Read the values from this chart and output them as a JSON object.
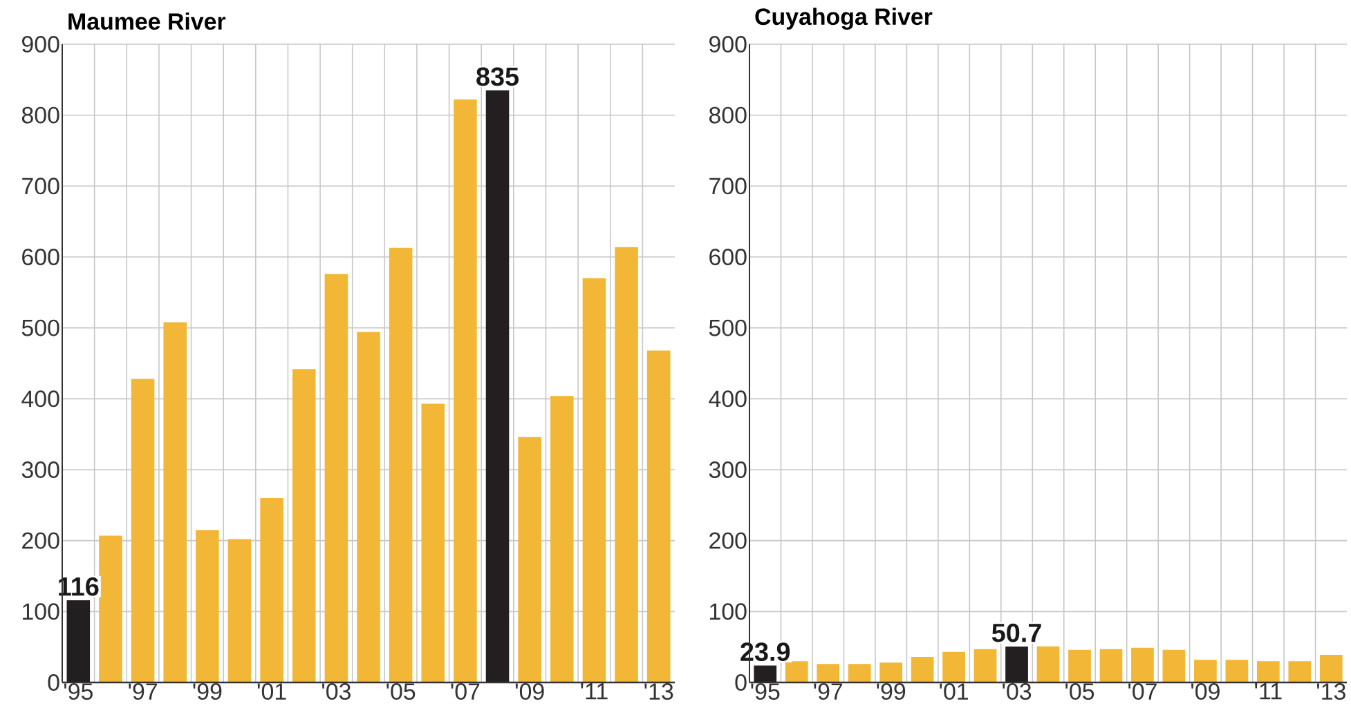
{
  "chart_data": [
    {
      "type": "bar",
      "title": "Maumee River",
      "categories": [
        "'95",
        null,
        "'97",
        null,
        "'99",
        null,
        "'01",
        null,
        "'03",
        null,
        "'05",
        null,
        "'07",
        null,
        "'09",
        null,
        "'11",
        null,
        "'13"
      ],
      "values": [
        116,
        207,
        428,
        508,
        215,
        202,
        260,
        442,
        576,
        494,
        613,
        393,
        822,
        835,
        346,
        404,
        570,
        614,
        468
      ],
      "colors": [
        "#231f20",
        "#f2b736",
        "#f2b736",
        "#f2b736",
        "#f2b736",
        "#f2b736",
        "#f2b736",
        "#f2b736",
        "#f2b736",
        "#f2b736",
        "#f2b736",
        "#f2b736",
        "#f2b736",
        "#231f20",
        "#f2b736",
        "#f2b736",
        "#f2b736",
        "#f2b736",
        "#f2b736"
      ],
      "value_labels": [
        "116",
        null,
        null,
        null,
        null,
        null,
        null,
        null,
        null,
        null,
        null,
        null,
        null,
        "835",
        null,
        null,
        null,
        null,
        null
      ],
      "ylim": [
        0,
        900
      ],
      "yticks": [
        0,
        100,
        200,
        300,
        400,
        500,
        600,
        700,
        800,
        900
      ],
      "grid": true
    },
    {
      "type": "bar",
      "title": "Cuyahoga River",
      "categories": [
        "'95",
        null,
        "'97",
        null,
        "'99",
        null,
        "'01",
        null,
        "'03",
        null,
        "'05",
        null,
        "'07",
        null,
        "'09",
        null,
        "'11",
        null,
        "'13"
      ],
      "values": [
        23.9,
        30,
        26,
        26,
        28,
        36,
        43,
        47,
        50.7,
        51,
        46,
        47,
        49,
        46,
        32,
        32,
        30,
        30,
        39
      ],
      "colors": [
        "#231f20",
        "#f2b736",
        "#f2b736",
        "#f2b736",
        "#f2b736",
        "#f2b736",
        "#f2b736",
        "#f2b736",
        "#231f20",
        "#f2b736",
        "#f2b736",
        "#f2b736",
        "#f2b736",
        "#f2b736",
        "#f2b736",
        "#f2b736",
        "#f2b736",
        "#f2b736",
        "#f2b736"
      ],
      "value_labels": [
        "23.9",
        null,
        null,
        null,
        null,
        null,
        null,
        null,
        "50.7",
        null,
        null,
        null,
        null,
        null,
        null,
        null,
        null,
        null,
        null
      ],
      "ylim": [
        0,
        900
      ],
      "yticks": [
        0,
        100,
        200,
        300,
        400,
        500,
        600,
        700,
        800,
        900
      ],
      "grid": true
    }
  ]
}
